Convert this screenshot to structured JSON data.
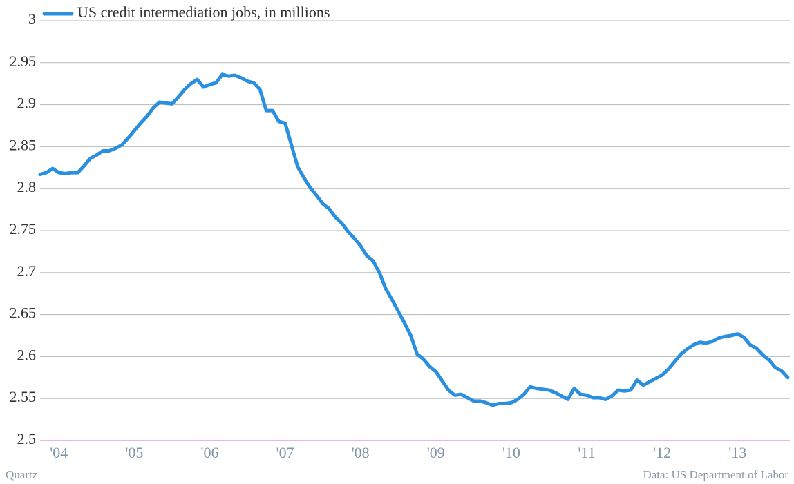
{
  "chart_data": {
    "type": "line",
    "source_left": "Quartz",
    "source_right": "Data: US Department of Labor",
    "categories": [
      null,
      null,
      null,
      "'04",
      null,
      null,
      null,
      null,
      null,
      null,
      null,
      null,
      null,
      null,
      null,
      "'05",
      null,
      null,
      null,
      null,
      null,
      null,
      null,
      null,
      null,
      null,
      null,
      "'06",
      null,
      null,
      null,
      null,
      null,
      null,
      null,
      null,
      null,
      null,
      null,
      "'07",
      null,
      null,
      null,
      null,
      null,
      null,
      null,
      null,
      null,
      null,
      null,
      "'08",
      null,
      null,
      null,
      null,
      null,
      null,
      null,
      null,
      null,
      null,
      null,
      "'09",
      null,
      null,
      null,
      null,
      null,
      null,
      null,
      null,
      null,
      null,
      null,
      "'10",
      null,
      null,
      null,
      null,
      null,
      null,
      null,
      null,
      null,
      null,
      null,
      "'11",
      null,
      null,
      null,
      null,
      null,
      null,
      null,
      null,
      null,
      null,
      null,
      "'12",
      null,
      null,
      null,
      null,
      null,
      null,
      null,
      null,
      null,
      null,
      null,
      "'13",
      null,
      null,
      null,
      null,
      null,
      null,
      null,
      null
    ],
    "series": [
      {
        "name": "US credit intermediation jobs, in millions",
        "color": "#2b8fe0",
        "values": [
          2.817,
          2.819,
          2.824,
          2.819,
          2.818,
          2.819,
          2.819,
          2.827,
          2.836,
          2.84,
          2.845,
          2.845,
          2.848,
          2.852,
          2.86,
          2.869,
          2.878,
          2.886,
          2.896,
          2.903,
          2.902,
          2.901,
          2.909,
          2.918,
          2.925,
          2.93,
          2.921,
          2.924,
          2.926,
          2.936,
          2.934,
          2.935,
          2.932,
          2.928,
          2.926,
          2.918,
          2.893,
          2.893,
          2.88,
          2.878,
          2.852,
          2.826,
          2.813,
          2.801,
          2.792,
          2.782,
          2.776,
          2.766,
          2.759,
          2.749,
          2.741,
          2.732,
          2.72,
          2.714,
          2.7,
          2.681,
          2.668,
          2.654,
          2.64,
          2.625,
          2.603,
          2.597,
          2.588,
          2.582,
          2.571,
          2.56,
          2.554,
          2.555,
          2.551,
          2.547,
          2.547,
          2.545,
          2.542,
          2.544,
          2.544,
          2.545,
          2.549,
          2.555,
          2.564,
          2.562,
          2.561,
          2.56,
          2.557,
          2.553,
          2.549,
          2.562,
          2.555,
          2.554,
          2.551,
          2.551,
          2.549,
          2.553,
          2.56,
          2.559,
          2.56,
          2.572,
          2.566,
          2.57,
          2.574,
          2.578,
          2.585,
          2.594,
          2.603,
          2.609,
          2.614,
          2.617,
          2.616,
          2.618,
          2.622,
          2.624,
          2.625,
          2.627,
          2.623,
          2.614,
          2.61,
          2.602,
          2.596,
          2.587,
          2.583,
          2.575
        ]
      }
    ],
    "ylim": [
      2.5,
      3
    ],
    "yticks": [
      2.5,
      2.55,
      2.6,
      2.65,
      2.7,
      2.75,
      2.8,
      2.85,
      2.9,
      2.95,
      3
    ],
    "grid": true
  }
}
